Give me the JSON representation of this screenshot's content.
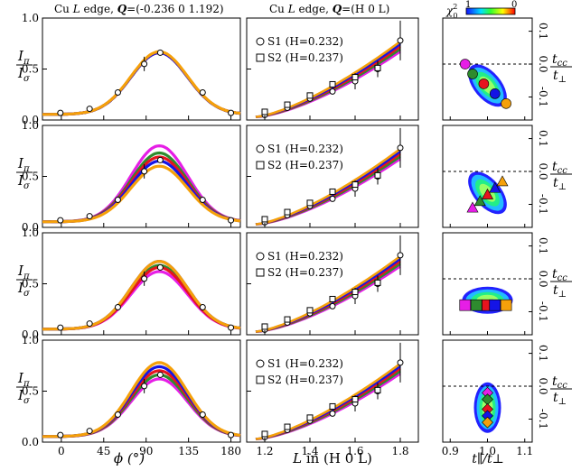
{
  "header": {
    "left_pre": "Cu ",
    "left_L": "L",
    "left_mid": " edge, ",
    "left_Q": "Q",
    "left_post": "=(-0.236 0 1.192)",
    "mid_pre": "Cu ",
    "mid_L": "L",
    "mid_mid": " edge, ",
    "mid_Q": "Q",
    "mid_post": "=(H 0 L)",
    "chi_label": "χ",
    "chi_sub": "0",
    "chi_sup": "2",
    "chi_tick_left": "1",
    "chi_tick_right": "0"
  },
  "axes": {
    "left_ylabel_num": "I",
    "left_ylabel_num_sub": "π",
    "left_ylabel_den": "I",
    "left_ylabel_den_sub": "σ",
    "left_xlabel": "ϕ (°)",
    "mid_xlabel_pre": "L",
    "mid_xlabel_post": " in (H 0 L)",
    "right_xlabel": "t∥/t⊥",
    "right_ylabel_num": "t",
    "right_ylabel_num_sub": "cc",
    "right_ylabel_den": "t",
    "right_ylabel_den_sub": "⊥",
    "left_yticks": [
      "0.0",
      "0.5",
      "1.0"
    ],
    "left_xticks": [
      "0",
      "45",
      "90",
      "135",
      "180"
    ],
    "mid_xticks": [
      "1.2",
      "1.4",
      "1.6",
      "1.8"
    ],
    "right_xticks": [
      "0.9",
      "1.0",
      "1.1"
    ],
    "right_yticks": [
      "0.1",
      "0.0",
      "-0.1"
    ]
  },
  "legend": {
    "s1": "S1 (H=0.232)",
    "s2": "S2 (H=0.237)"
  },
  "colors": {
    "magenta": "#e61ee6",
    "green": "#2e8b2e",
    "red": "#e6141e",
    "blue": "#1414e6",
    "orange": "#f5a00a",
    "dark_olive": "#4a5a2a"
  },
  "chart_data": [
    {
      "type": "line",
      "panel": "phi-dependence",
      "x_range": [
        -20,
        190
      ],
      "y_range": [
        0,
        1.0
      ],
      "data_points_x": [
        -1,
        30,
        60,
        88,
        105,
        150,
        180
      ],
      "data_points_y": [
        0.07,
        0.11,
        0.27,
        0.55,
        0.66,
        0.27,
        0.07
      ],
      "rows": [
        {
          "row": 1,
          "parameter": "t_cc",
          "series_peak": [
            0.66,
            0.66,
            0.66,
            0.66,
            0.67
          ]
        },
        {
          "row": 2,
          "parameter": "t_cc",
          "series_peak": [
            0.8,
            0.73,
            0.69,
            0.65,
            0.6
          ]
        },
        {
          "row": 3,
          "parameter": "t_parallel",
          "series_peak": [
            0.62,
            0.68,
            0.66,
            0.72,
            0.72
          ]
        },
        {
          "row": 4,
          "parameter": "t_parallel",
          "series_peak": [
            0.62,
            0.66,
            0.7,
            0.74,
            0.78
          ]
        }
      ],
      "series_names": [
        "magenta",
        "green",
        "red",
        "blue",
        "orange"
      ]
    },
    {
      "type": "line",
      "panel": "L-dependence",
      "x_range": [
        1.12,
        1.88
      ],
      "y_range": [
        0,
        1.0
      ],
      "s1_x": [
        1.2,
        1.3,
        1.4,
        1.5,
        1.6,
        1.7,
        1.8
      ],
      "s1_y": [
        0.05,
        0.12,
        0.21,
        0.28,
        0.38,
        0.5,
        0.78
      ],
      "s2_x": [
        1.2,
        1.3,
        1.4,
        1.5,
        1.6,
        1.7
      ],
      "s2_y": [
        0.08,
        0.15,
        0.24,
        0.35,
        0.42,
        0.51
      ],
      "curve_start": 0.03,
      "curve_end": 0.72
    },
    {
      "type": "scatter",
      "panel": "chi-squared-map",
      "x_range": [
        0.88,
        1.12
      ],
      "y_range": [
        -0.17,
        0.14
      ],
      "dashed_line_y": 0.0,
      "rows": [
        {
          "row": 1,
          "marker": "circle",
          "x": [
            0.94,
            0.96,
            0.99,
            1.02,
            1.05
          ],
          "y": [
            0.0,
            -0.03,
            -0.06,
            -0.09,
            -0.12
          ]
        },
        {
          "row": 2,
          "marker": "triangle",
          "x": [
            0.96,
            0.98,
            1.0,
            1.02,
            1.04
          ],
          "y": [
            -0.11,
            -0.09,
            -0.07,
            -0.05,
            -0.03
          ]
        },
        {
          "row": 3,
          "marker": "square",
          "x": [
            0.94,
            0.97,
            1.0,
            1.02,
            1.05
          ],
          "y": [
            -0.08,
            -0.08,
            -0.08,
            -0.08,
            -0.08
          ]
        },
        {
          "row": 4,
          "marker": "diamond",
          "x": [
            1.0,
            1.0,
            1.0,
            1.0,
            1.0
          ],
          "y": [
            -0.02,
            -0.04,
            -0.07,
            -0.09,
            -0.11
          ]
        }
      ]
    }
  ]
}
